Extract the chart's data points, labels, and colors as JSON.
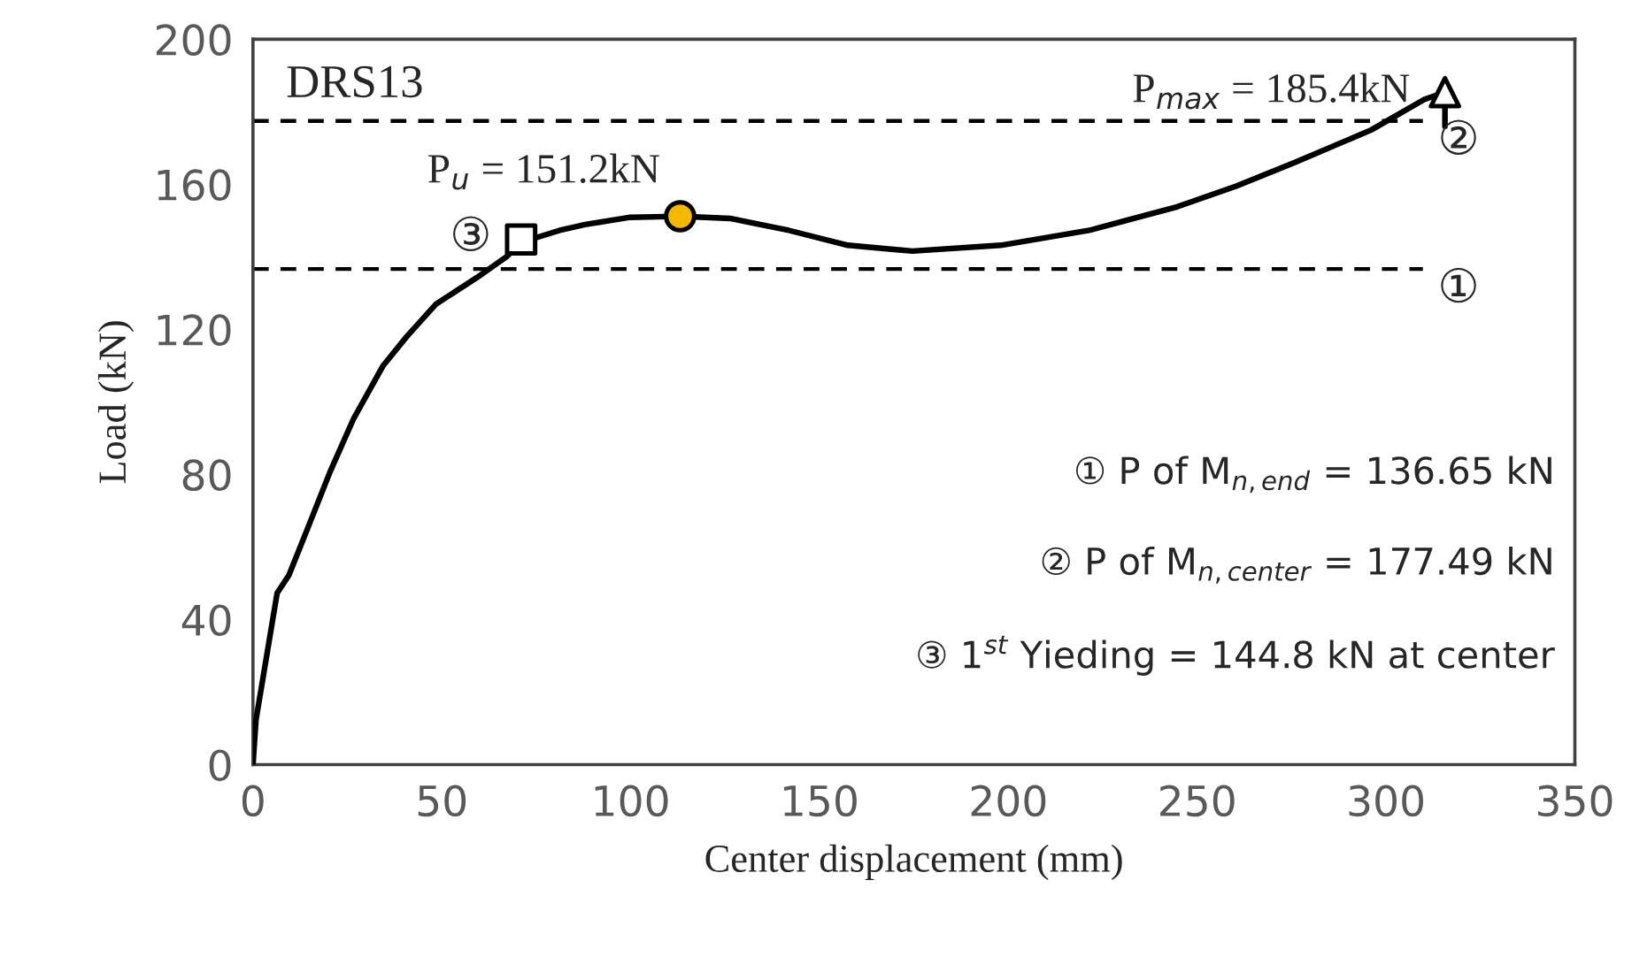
{
  "chart_data": {
    "type": "line",
    "xlabel": "Center displacement (mm)",
    "ylabel": "Load (kN)",
    "xlim": [
      0,
      350
    ],
    "xticks": [
      0,
      50,
      100,
      150,
      200,
      250,
      300,
      350
    ],
    "ylim": [
      0,
      200
    ],
    "yticks": [
      0,
      40,
      80,
      120,
      160,
      200
    ],
    "grid": false,
    "legend": false,
    "series": [
      {
        "color": "#000000",
        "marker": "none",
        "line_style": "solid",
        "x": [
          0,
          0.8,
          6.4,
          9.5,
          14.2,
          20.4,
          26.6,
          34.4,
          40.7,
          48.5,
          59.3,
          67.1,
          71.0,
          81.2,
          87.9,
          99.9,
          113.1,
          126.3,
          141.9,
          157.5,
          174.6,
          198,
          221.4,
          244.7,
          260.3,
          275.8,
          296.1,
          310.1,
          315.6,
          315.6
        ],
        "values": [
          0,
          12.3,
          47.3,
          52.2,
          64.4,
          80.7,
          95.3,
          109.9,
          118,
          127,
          134.3,
          140,
          144.0,
          147.3,
          148.9,
          150.9,
          151.2,
          150.6,
          147.3,
          143.2,
          141.6,
          143.2,
          147.3,
          153.8,
          159.5,
          166,
          175,
          183.4,
          185.4,
          176
        ]
      },
      {
        "type": "scatter",
        "color": "#ffffff",
        "marker": "square",
        "x": [
          71.0
        ],
        "values": [
          144.8
        ]
      },
      {
        "type": "scatter",
        "color": "#f5b800",
        "marker": "circle",
        "x": [
          113.1
        ],
        "values": [
          151.2
        ]
      },
      {
        "type": "scatter",
        "color": "#ffffff",
        "marker": "triangle",
        "x": [
          315.6
        ],
        "values": [
          185.4
        ]
      }
    ],
    "ref_lines": [
      {
        "axis": "y",
        "value": 136.65,
        "label": "①",
        "color": "#000000",
        "line_style": "dashed"
      },
      {
        "axis": "y",
        "value": 177.49,
        "label": "②",
        "color": "#000000",
        "line_style": "dashed"
      }
    ],
    "annotations": [
      "DRS13",
      {
        "text": "P$_{u}$ = 151.2kN",
        "x": 113.1,
        "y": 151.2
      },
      {
        "text": "P$_{max}$ = 185.4kN",
        "x": 315.6,
        "y": 185.4
      },
      {
        "text": "③",
        "x": 71.0,
        "y": 144.8
      },
      "① P of M$_{n,end}$ = 136.65 kN",
      "② P of M$_{n,center}$ = 177.49 kN",
      "③ 1$^{st}$ Yieding = 144.8 kN at center"
    ]
  }
}
